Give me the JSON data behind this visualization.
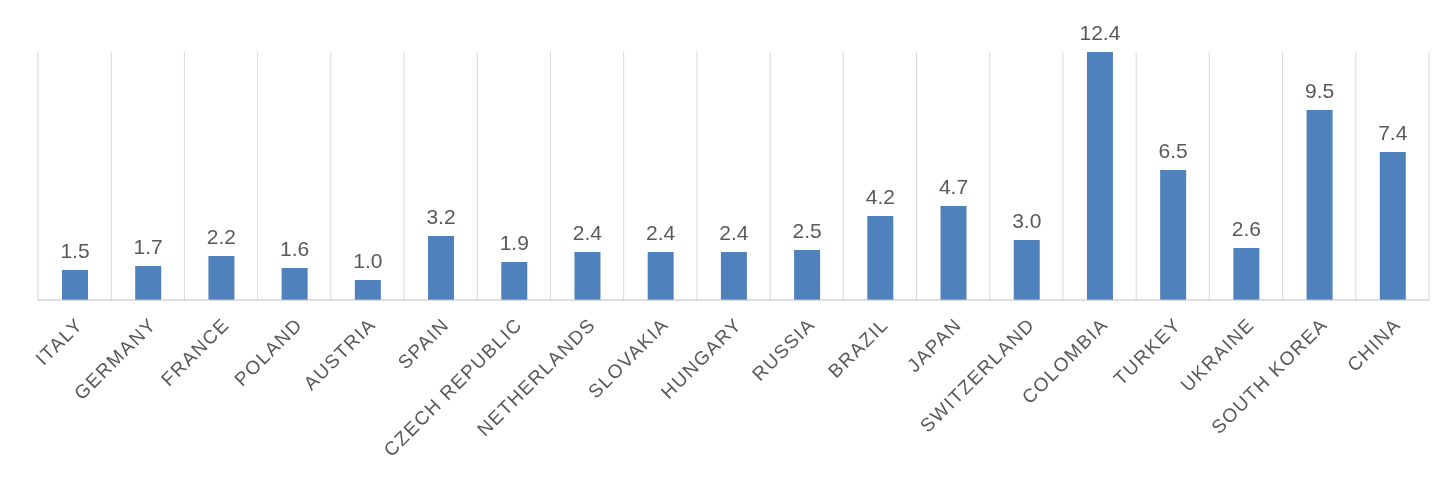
{
  "chart_data": {
    "type": "bar",
    "categories": [
      "ITALY",
      "GERMANY",
      "FRANCE",
      "POLAND",
      "AUSTRIA",
      "SPAIN",
      "CZECH REPUBLIC",
      "NETHERLANDS",
      "SLOVAKIA",
      "HUNGARY",
      "RUSSIA",
      "BRAZIL",
      "JAPAN",
      "SWITZERLAND",
      "COLOMBIA",
      "TURKEY",
      "UKRAINE",
      "SOUTH KOREA",
      "CHINA"
    ],
    "values": [
      1.5,
      1.7,
      2.2,
      1.6,
      1.0,
      3.2,
      1.9,
      2.4,
      2.4,
      2.4,
      2.5,
      4.2,
      4.7,
      3.0,
      12.4,
      6.5,
      2.6,
      9.5,
      7.4
    ],
    "value_labels": [
      "1.5",
      "1.7",
      "2.2",
      "1.6",
      "1.0",
      "3.2",
      "1.9",
      "2.4",
      "2.4",
      "2.4",
      "2.5",
      "4.2",
      "4.7",
      "3.0",
      "12.4",
      "6.5",
      "2.6",
      "9.5",
      "7.4"
    ],
    "color": "#4f81bd",
    "grid": "x",
    "tick_labels": "x"
  }
}
